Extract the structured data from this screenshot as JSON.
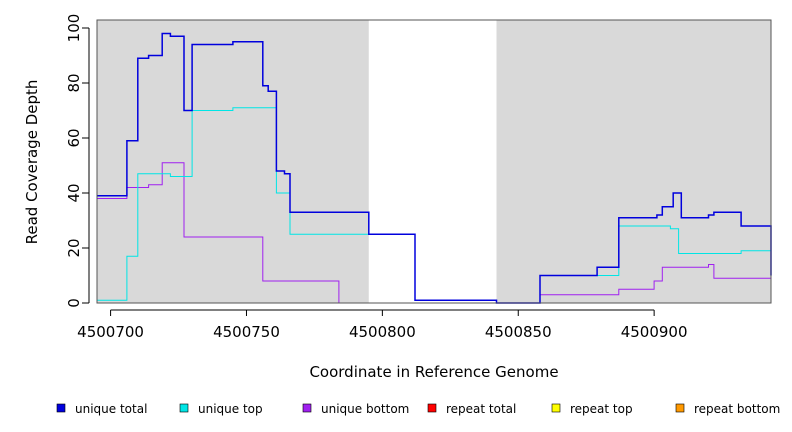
{
  "chart_data": {
    "type": "line",
    "xlabel": "Coordinate in Reference Genome",
    "ylabel": "Read Coverage Depth",
    "xlim": [
      4500695,
      4500943
    ],
    "ylim": [
      0,
      100
    ],
    "x_ticks": [
      4500700,
      4500750,
      4500800,
      4500850,
      4500900
    ],
    "x_tick_labels": [
      "4500700",
      "4500750",
      "4500800",
      "4500850",
      "4500900"
    ],
    "y_ticks": [
      0,
      20,
      40,
      60,
      80,
      100
    ],
    "y_tick_labels": [
      "0",
      "20",
      "40",
      "60",
      "80",
      "100"
    ],
    "shaded_regions": [
      [
        4500695,
        4500795
      ],
      [
        4500842,
        4500943
      ]
    ],
    "shade_color": "#d9d9d9",
    "step": true,
    "series": [
      {
        "name": "unique total",
        "color": "#0000dd",
        "x": [
          4500695,
          4500706,
          4500710,
          4500714,
          4500719,
          4500722,
          4500727,
          4500730,
          4500745,
          4500752,
          4500756,
          4500758,
          4500761,
          4500764,
          4500766,
          4500784,
          4500795,
          4500812,
          4500842,
          4500858,
          4500879,
          4500887,
          4500901,
          4500903,
          4500907,
          4500910,
          4500920,
          4500922,
          4500932,
          4500943
        ],
        "y": [
          39,
          59,
          89,
          90,
          98,
          97,
          70,
          94,
          95,
          95,
          79,
          77,
          48,
          47,
          33,
          33,
          25,
          1,
          0,
          10,
          13,
          31,
          32,
          35,
          40,
          31,
          32,
          33,
          28,
          10
        ]
      },
      {
        "name": "unique top",
        "color": "#00e5e5",
        "x": [
          4500695,
          4500706,
          4500710,
          4500722,
          4500730,
          4500745,
          4500756,
          4500761,
          4500766,
          4500784,
          4500795,
          4500812,
          4500842,
          4500858,
          4500879,
          4500887,
          4500906,
          4500909,
          4500932,
          4500943
        ],
        "y": [
          1,
          17,
          47,
          46,
          70,
          71,
          71,
          40,
          25,
          25,
          25,
          1,
          0,
          10,
          10,
          28,
          27,
          18,
          19,
          1
        ]
      },
      {
        "name": "unique bottom",
        "color": "#a020f0",
        "x": [
          4500695,
          4500706,
          4500714,
          4500719,
          4500727,
          4500756,
          4500784,
          4500795,
          4500812,
          4500842,
          4500858,
          4500887,
          4500900,
          4500903,
          4500920,
          4500922,
          4500932,
          4500943
        ],
        "y": [
          38,
          42,
          43,
          51,
          24,
          8,
          0,
          0,
          0,
          0,
          3,
          5,
          8,
          13,
          14,
          9,
          9,
          9
        ]
      },
      {
        "name": "repeat total",
        "color": "#ff0000",
        "x": [
          4500695,
          4500943
        ],
        "y": [
          0,
          0
        ]
      },
      {
        "name": "repeat top",
        "color": "#ffff00",
        "x": [
          4500695,
          4500943
        ],
        "y": [
          0,
          0
        ]
      },
      {
        "name": "repeat bottom",
        "color": "#ff9900",
        "x": [
          4500695,
          4500943
        ],
        "y": [
          0,
          0
        ]
      }
    ],
    "legend": {
      "placement": "bottom",
      "items": [
        "unique total",
        "unique top",
        "unique bottom",
        "repeat total",
        "repeat top",
        "repeat bottom"
      ]
    }
  }
}
